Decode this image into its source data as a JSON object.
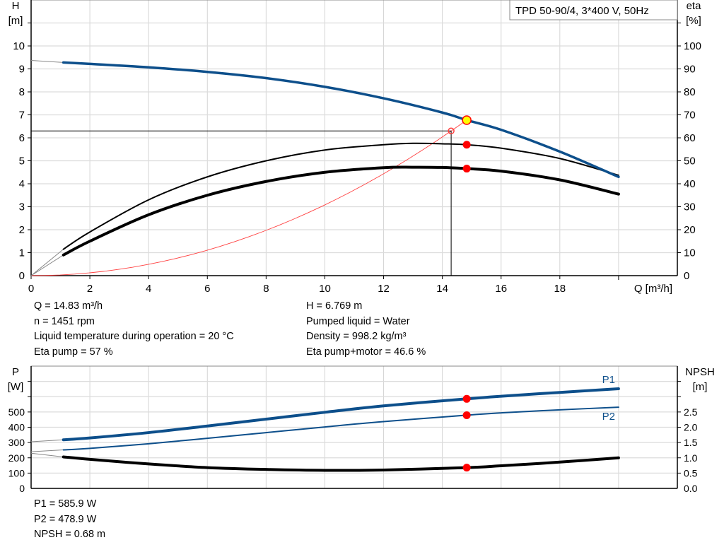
{
  "chart_data": [
    {
      "type": "line",
      "legend_box": "TPD 50-90/4, 3*400 V, 50Hz",
      "legend_placement": "top-right",
      "xlabel": "Q [m³/h]",
      "ylabel_left": [
        "H",
        "[m]"
      ],
      "ylabel_right": [
        "eta",
        "[%]"
      ],
      "xlim": [
        0,
        22
      ],
      "ylim_left": [
        0,
        12
      ],
      "ylim_right": [
        0,
        120
      ],
      "xticks": [
        0,
        2,
        4,
        6,
        8,
        10,
        12,
        14,
        16,
        18
      ],
      "yticks_left": [
        0,
        1,
        2,
        3,
        4,
        5,
        6,
        7,
        8,
        9,
        10
      ],
      "yticks_right": [
        0,
        10,
        20,
        30,
        40,
        50,
        60,
        70,
        80,
        90,
        100
      ],
      "grid": true,
      "colors": {
        "head": "#0d4f8b",
        "system": "#ff4040",
        "point": "#ff0000",
        "duty": "#ffff00"
      },
      "series": [
        {
          "key": "head",
          "axis": "left",
          "x": [
            0,
            1.1,
            2,
            4,
            6,
            8,
            10,
            12,
            14,
            14.83,
            16,
            18,
            20
          ],
          "y": [
            9.37,
            9.28,
            9.22,
            9.07,
            8.87,
            8.6,
            8.22,
            7.72,
            7.1,
            6.77,
            6.35,
            5.4,
            4.3
          ]
        },
        {
          "key": "eta_pump",
          "axis": "right",
          "x": [
            0,
            1.1,
            2,
            4,
            6,
            8,
            10,
            12,
            13,
            14,
            14.83,
            16,
            18,
            20
          ],
          "y": [
            0,
            11.5,
            19,
            33,
            43,
            50,
            54.7,
            57,
            57.6,
            57.4,
            57,
            55.5,
            51,
            43.7
          ]
        },
        {
          "key": "eta_pump_motor",
          "axis": "right",
          "x": [
            0,
            1.1,
            2,
            4,
            6,
            8,
            10,
            12,
            13,
            14,
            14.83,
            16,
            18,
            20
          ],
          "y": [
            0,
            9,
            15,
            26.5,
            35,
            41,
            45,
            47,
            47.2,
            47.1,
            46.6,
            45.5,
            41.7,
            35.5
          ]
        },
        {
          "key": "system",
          "axis": "left",
          "formula_coefficient": 0.0308,
          "x_max": 14.83
        }
      ],
      "duty_point": {
        "Q": 14.83,
        "H": 6.769,
        "eta_pump": 57,
        "eta_pump_motor": 46.6
      },
      "requested_point": {
        "Q": 14.3,
        "H": 6.3
      }
    },
    {
      "type": "line",
      "ylabel_left": [
        "P",
        "[W]"
      ],
      "ylabel_right": [
        "NPSH",
        "[m]"
      ],
      "xlim": [
        0,
        22
      ],
      "ylim_left": [
        0,
        800
      ],
      "ylim_right": [
        0,
        4
      ],
      "yticks_left": [
        0,
        100,
        200,
        300,
        400,
        500
      ],
      "yticks_right": [
        "0.0",
        "0.5",
        "1.0",
        "1.5",
        "2.0",
        "2.5"
      ],
      "grid": true,
      "series": [
        {
          "name": "P1",
          "key": "p1",
          "axis": "left",
          "x": [
            0,
            1.1,
            2,
            4,
            6,
            8,
            10,
            12,
            14.83,
            16,
            18,
            20
          ],
          "y": [
            305,
            318,
            330,
            365,
            408,
            453,
            498,
            540,
            586,
            603,
            628,
            652
          ]
        },
        {
          "name": "P2",
          "key": "p2",
          "axis": "left",
          "x": [
            0,
            1.1,
            2,
            4,
            6,
            8,
            10,
            12,
            14.83,
            16,
            18,
            20
          ],
          "y": [
            240,
            252,
            262,
            292,
            328,
            365,
            402,
            437,
            479,
            494,
            514,
            531
          ]
        },
        {
          "key": "npsh",
          "axis": "right",
          "x": [
            0,
            1.1,
            2,
            4,
            6,
            8,
            10,
            12,
            14.83,
            16,
            18,
            20
          ],
          "y": [
            1.15,
            1.03,
            0.95,
            0.8,
            0.68,
            0.62,
            0.59,
            0.6,
            0.68,
            0.74,
            0.86,
            1.0
          ]
        }
      ],
      "duty_point": {
        "Q": 14.83,
        "P1": 585.9,
        "P2": 478.9,
        "NPSH": 0.68
      }
    }
  ],
  "info_top": {
    "left": [
      "Q = 14.83 m³/h",
      "n = 1451 rpm",
      "Liquid temperature during operation = 20 °C",
      "Eta pump = 57 %"
    ],
    "right": [
      "H = 6.769 m",
      "Pumped liquid = Water",
      "Density = 998.2 kg/m³",
      "Eta pump+motor = 46.6 %"
    ]
  },
  "info_bottom": [
    "P1 = 585.9 W",
    "P2 = 478.9 W",
    "NPSH = 0.68 m"
  ]
}
